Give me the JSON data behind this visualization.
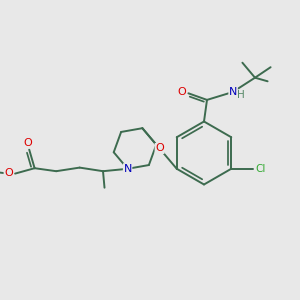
{
  "bg_color": "#e8e8e8",
  "bond_color": "#3d6b4f",
  "bond_width": 1.4,
  "atom_colors": {
    "O": "#dd0000",
    "N": "#0000bb",
    "Cl": "#33aa33",
    "H": "#558866",
    "C": "#1a1a1a"
  },
  "figsize": [
    3.0,
    3.0
  ],
  "dpi": 100
}
